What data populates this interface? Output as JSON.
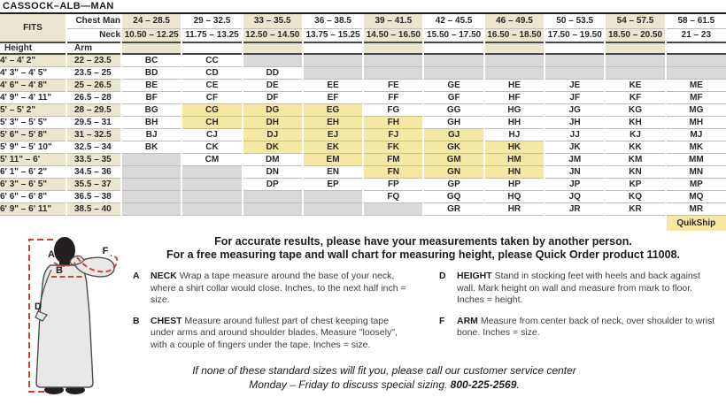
{
  "title": "CASSOCK–ALB—MAN",
  "colors": {
    "quikship": "#F5E8A2",
    "unavailable": "#D9D9D9",
    "stripe": "#ECE5D0",
    "accent_red": "#C8432E",
    "ink": "#231F20"
  },
  "table": {
    "fits_label": "FITS",
    "chest_row_label": "Chest Man",
    "neck_row_label": "Neck",
    "height_col_label": "Height",
    "arm_col_label": "Arm",
    "chest_ranges": [
      "24 – 28.5",
      "29 – 32.5",
      "33 – 35.5",
      "36 – 38.5",
      "39 – 41.5",
      "42 – 45.5",
      "46 – 49.5",
      "50 – 53.5",
      "54 – 57.5",
      "58 – 61.5"
    ],
    "neck_ranges": [
      "10.50 – 12.25",
      "11.75 – 13.25",
      "12.50 – 14.50",
      "13.75 – 15.25",
      "14.50 – 16.50",
      "15.50 – 17.50",
      "16.50 – 18.50",
      "17.50 – 19.50",
      "18.50 – 20.50",
      "21 – 23"
    ],
    "quikship_label": "QuikShip",
    "rows": [
      {
        "height": "4' – 4' 2\"",
        "arm": "22 – 23.5",
        "cells": [
          {
            "code": "BC",
            "status": "available"
          },
          {
            "code": "CC",
            "status": "available"
          },
          {
            "code": "",
            "status": "unavailable"
          },
          {
            "code": "",
            "status": "unavailable"
          },
          {
            "code": "",
            "status": "unavailable"
          },
          {
            "code": "",
            "status": "unavailable"
          },
          {
            "code": "",
            "status": "unavailable"
          },
          {
            "code": "",
            "status": "unavailable"
          },
          {
            "code": "",
            "status": "unavailable"
          },
          {
            "code": "",
            "status": "unavailable"
          }
        ]
      },
      {
        "height": "4' 3\" – 4' 5\"",
        "arm": "23.5 – 25",
        "cells": [
          {
            "code": "BD",
            "status": "available"
          },
          {
            "code": "CD",
            "status": "available"
          },
          {
            "code": "DD",
            "status": "available"
          },
          {
            "code": "",
            "status": "unavailable"
          },
          {
            "code": "",
            "status": "unavailable"
          },
          {
            "code": "",
            "status": "unavailable"
          },
          {
            "code": "",
            "status": "unavailable"
          },
          {
            "code": "",
            "status": "unavailable"
          },
          {
            "code": "",
            "status": "unavailable"
          },
          {
            "code": "",
            "status": "unavailable"
          }
        ]
      },
      {
        "height": "4' 6\" – 4' 8\"",
        "arm": "25 – 26.5",
        "cells": [
          {
            "code": "BE",
            "status": "available"
          },
          {
            "code": "CE",
            "status": "available"
          },
          {
            "code": "DE",
            "status": "available"
          },
          {
            "code": "EE",
            "status": "available"
          },
          {
            "code": "FE",
            "status": "available"
          },
          {
            "code": "GE",
            "status": "available"
          },
          {
            "code": "HE",
            "status": "available"
          },
          {
            "code": "JE",
            "status": "available"
          },
          {
            "code": "KE",
            "status": "available"
          },
          {
            "code": "ME",
            "status": "available"
          }
        ]
      },
      {
        "height": "4' 9\" – 4' 11\"",
        "arm": "26.5 – 28",
        "cells": [
          {
            "code": "BF",
            "status": "available"
          },
          {
            "code": "CF",
            "status": "available"
          },
          {
            "code": "DF",
            "status": "available"
          },
          {
            "code": "EF",
            "status": "available"
          },
          {
            "code": "FF",
            "status": "available"
          },
          {
            "code": "GF",
            "status": "available"
          },
          {
            "code": "HF",
            "status": "available"
          },
          {
            "code": "JF",
            "status": "available"
          },
          {
            "code": "KF",
            "status": "available"
          },
          {
            "code": "MF",
            "status": "available"
          }
        ]
      },
      {
        "height": "5' – 5' 2\"",
        "arm": "28 – 29.5",
        "cells": [
          {
            "code": "BG",
            "status": "available"
          },
          {
            "code": "CG",
            "status": "quikship"
          },
          {
            "code": "DG",
            "status": "quikship"
          },
          {
            "code": "EG",
            "status": "quikship"
          },
          {
            "code": "FG",
            "status": "available"
          },
          {
            "code": "GG",
            "status": "available"
          },
          {
            "code": "HG",
            "status": "available"
          },
          {
            "code": "JG",
            "status": "available"
          },
          {
            "code": "KG",
            "status": "available"
          },
          {
            "code": "MG",
            "status": "available"
          }
        ]
      },
      {
        "height": "5' 3\" – 5' 5\"",
        "arm": "29.5 – 31",
        "cells": [
          {
            "code": "BH",
            "status": "available"
          },
          {
            "code": "CH",
            "status": "quikship"
          },
          {
            "code": "DH",
            "status": "quikship"
          },
          {
            "code": "EH",
            "status": "quikship"
          },
          {
            "code": "FH",
            "status": "quikship"
          },
          {
            "code": "GH",
            "status": "available"
          },
          {
            "code": "HH",
            "status": "available"
          },
          {
            "code": "JH",
            "status": "available"
          },
          {
            "code": "KH",
            "status": "available"
          },
          {
            "code": "MH",
            "status": "available"
          }
        ]
      },
      {
        "height": "5' 6\" – 5' 8\"",
        "arm": "31 – 32.5",
        "cells": [
          {
            "code": "BJ",
            "status": "available"
          },
          {
            "code": "CJ",
            "status": "available"
          },
          {
            "code": "DJ",
            "status": "quikship"
          },
          {
            "code": "EJ",
            "status": "quikship"
          },
          {
            "code": "FJ",
            "status": "quikship"
          },
          {
            "code": "GJ",
            "status": "quikship"
          },
          {
            "code": "HJ",
            "status": "available"
          },
          {
            "code": "JJ",
            "status": "available"
          },
          {
            "code": "KJ",
            "status": "available"
          },
          {
            "code": "MJ",
            "status": "available"
          }
        ]
      },
      {
        "height": "5' 9\" – 5' 10\"",
        "arm": "32.5 – 34",
        "cells": [
          {
            "code": "BK",
            "status": "available"
          },
          {
            "code": "CK",
            "status": "available"
          },
          {
            "code": "DK",
            "status": "quikship"
          },
          {
            "code": "EK",
            "status": "quikship"
          },
          {
            "code": "FK",
            "status": "quikship"
          },
          {
            "code": "GK",
            "status": "quikship"
          },
          {
            "code": "HK",
            "status": "quikship"
          },
          {
            "code": "JK",
            "status": "available"
          },
          {
            "code": "KK",
            "status": "available"
          },
          {
            "code": "MK",
            "status": "available"
          }
        ]
      },
      {
        "height": "5' 11\" – 6'",
        "arm": "33.5 – 35",
        "cells": [
          {
            "code": "",
            "status": "unavailable"
          },
          {
            "code": "CM",
            "status": "available"
          },
          {
            "code": "DM",
            "status": "available"
          },
          {
            "code": "EM",
            "status": "quikship"
          },
          {
            "code": "FM",
            "status": "quikship"
          },
          {
            "code": "GM",
            "status": "quikship"
          },
          {
            "code": "HM",
            "status": "quikship"
          },
          {
            "code": "JM",
            "status": "available"
          },
          {
            "code": "KM",
            "status": "available"
          },
          {
            "code": "MM",
            "status": "available"
          }
        ]
      },
      {
        "height": "6' 1\" – 6' 2\"",
        "arm": "34.5 – 36",
        "cells": [
          {
            "code": "",
            "status": "unavailable"
          },
          {
            "code": "",
            "status": "unavailable"
          },
          {
            "code": "DN",
            "status": "available"
          },
          {
            "code": "EN",
            "status": "available"
          },
          {
            "code": "FN",
            "status": "quikship"
          },
          {
            "code": "GN",
            "status": "quikship"
          },
          {
            "code": "HN",
            "status": "quikship"
          },
          {
            "code": "JN",
            "status": "available"
          },
          {
            "code": "KN",
            "status": "available"
          },
          {
            "code": "MN",
            "status": "available"
          }
        ]
      },
      {
        "height": "6' 3\" – 6' 5\"",
        "arm": "35.5 – 37",
        "cells": [
          {
            "code": "",
            "status": "unavailable"
          },
          {
            "code": "",
            "status": "unavailable"
          },
          {
            "code": "DP",
            "status": "available"
          },
          {
            "code": "EP",
            "status": "available"
          },
          {
            "code": "FP",
            "status": "available"
          },
          {
            "code": "GP",
            "status": "available"
          },
          {
            "code": "HP",
            "status": "available"
          },
          {
            "code": "JP",
            "status": "available"
          },
          {
            "code": "KP",
            "status": "available"
          },
          {
            "code": "MP",
            "status": "available"
          }
        ]
      },
      {
        "height": "6' 6\" – 6' 8\"",
        "arm": "36.5 – 38",
        "cells": [
          {
            "code": "",
            "status": "unavailable"
          },
          {
            "code": "",
            "status": "unavailable"
          },
          {
            "code": "",
            "status": "unavailable"
          },
          {
            "code": "",
            "status": "unavailable"
          },
          {
            "code": "FQ",
            "status": "available"
          },
          {
            "code": "GQ",
            "status": "available"
          },
          {
            "code": "HQ",
            "status": "available"
          },
          {
            "code": "JQ",
            "status": "available"
          },
          {
            "code": "KQ",
            "status": "available"
          },
          {
            "code": "MQ",
            "status": "available"
          }
        ]
      },
      {
        "height": "6' 9\" – 6' 11\"",
        "arm": "38.5 – 40",
        "cells": [
          {
            "code": "",
            "status": "unavailable"
          },
          {
            "code": "",
            "status": "unavailable"
          },
          {
            "code": "",
            "status": "unavailable"
          },
          {
            "code": "",
            "status": "unavailable"
          },
          {
            "code": "",
            "status": "unavailable"
          },
          {
            "code": "GR",
            "status": "available"
          },
          {
            "code": "HR",
            "status": "available"
          },
          {
            "code": "JR",
            "status": "available"
          },
          {
            "code": "KR",
            "status": "available"
          },
          {
            "code": "MR",
            "status": "available"
          }
        ]
      }
    ]
  },
  "instructions": {
    "intro_line_1": "For accurate results, please have your measurements taken by another person.",
    "intro_line_2": "For a free measuring tape and wall chart for measuring height, please Quick Order product 11008.",
    "items": [
      {
        "letter": "A",
        "term": "NECK",
        "text": "Wrap a tape measure around the base of your neck, where a shirt collar would close. Inches, to the next half inch = size."
      },
      {
        "letter": "D",
        "term": "HEIGHT",
        "text": "Stand in stocking feet with heels and back against wall. Mark height on wall and measure from mark to floor. Inches = height."
      },
      {
        "letter": "B",
        "term": "CHEST",
        "text": "Measure around fullest part of chest keeping tape under arms and around shoulder blades. Measure \"loosely\", with a couple of fingers under the tape. Inches = size."
      },
      {
        "letter": "F",
        "term": "ARM",
        "text": "Measure from center back of neck, over shoulder to wrist bone. Inches = size."
      }
    ]
  },
  "diagram": {
    "labels": {
      "neck": "A",
      "chest": "B",
      "height": "D",
      "arm": "F"
    }
  },
  "footer": {
    "line_1": "If none of these standard sizes will fit you, please call our customer service center",
    "line_2_prefix": "Monday – Friday to discuss special sizing. ",
    "phone": "800-225-2569",
    "line_2_suffix": "."
  }
}
